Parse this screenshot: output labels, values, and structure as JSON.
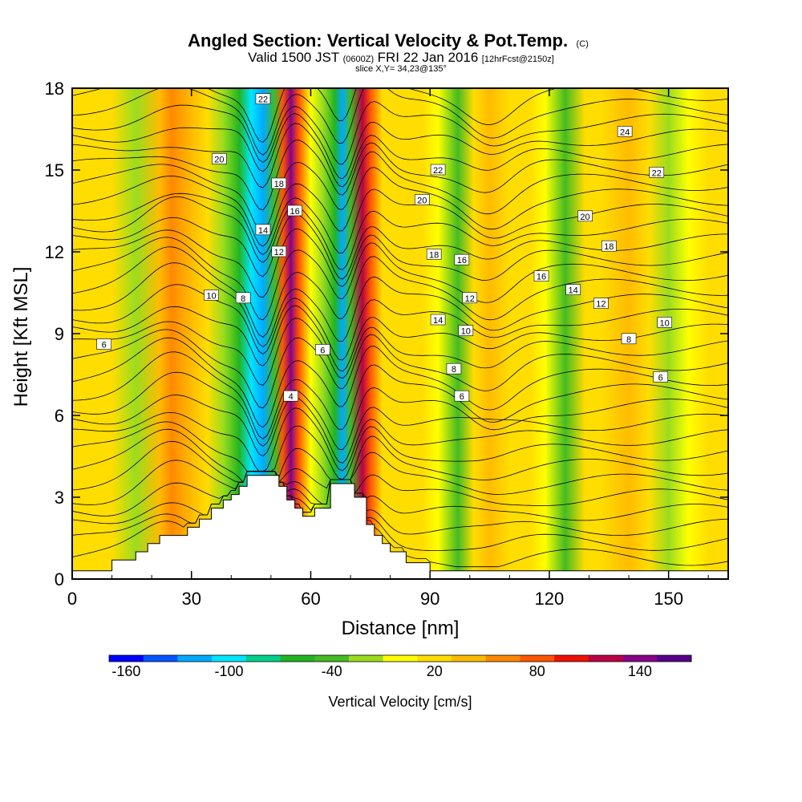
{
  "chart_data": {
    "type": "heatmap",
    "title": "Angled Section: Vertical Velocity & Pot.Temp.",
    "title_suffix": "(C)",
    "subtitle": {
      "part1": "Valid 1500 JST",
      "part2": "(0600Z)",
      "part3": "FRI 22 Jan 2016",
      "part4": "[12hrFcst@2150z]"
    },
    "slice_text": "slice X,Y= 34,23@135°",
    "xlabel": "Distance [nm]",
    "ylabel": "Height [Kft MSL]",
    "xlim": [
      0,
      165
    ],
    "ylim": [
      0,
      18
    ],
    "xticks": [
      "0",
      "30",
      "60",
      "90",
      "120",
      "150"
    ],
    "yticks": [
      "0",
      "3",
      "6",
      "9",
      "12",
      "15",
      "18"
    ],
    "colorbar": {
      "label": "Vertical Velocity [cm/s]",
      "tick_labels": [
        "-160",
        "-100",
        "-40",
        "20",
        "80",
        "140"
      ],
      "bins": [
        {
          "color": "#0000ff"
        },
        {
          "color": "#0055ff"
        },
        {
          "color": "#00aaff"
        },
        {
          "color": "#00e5ff"
        },
        {
          "color": "#00d08a"
        },
        {
          "color": "#22b422"
        },
        {
          "color": "#44bb22"
        },
        {
          "color": "#9bdc1e"
        },
        {
          "color": "#ffff00"
        },
        {
          "color": "#ffdd00"
        },
        {
          "color": "#ffbb00"
        },
        {
          "color": "#ff8800"
        },
        {
          "color": "#ff5500"
        },
        {
          "color": "#ee1100"
        },
        {
          "color": "#bb0044"
        },
        {
          "color": "#880088"
        },
        {
          "color": "#550088"
        }
      ]
    },
    "terrain_profile": [
      [
        0,
        0.3
      ],
      [
        10,
        0.3
      ],
      [
        10,
        0.7
      ],
      [
        16,
        0.7
      ],
      [
        16,
        1.0
      ],
      [
        19,
        1.0
      ],
      [
        19,
        1.3
      ],
      [
        22,
        1.3
      ],
      [
        22,
        1.6
      ],
      [
        29,
        1.6
      ],
      [
        29,
        1.9
      ],
      [
        32,
        1.9
      ],
      [
        32,
        2.2
      ],
      [
        35,
        2.2
      ],
      [
        35,
        2.6
      ],
      [
        38,
        2.6
      ],
      [
        38,
        2.9
      ],
      [
        40,
        2.9
      ],
      [
        40,
        3.1
      ],
      [
        42,
        3.1
      ],
      [
        42,
        3.4
      ],
      [
        44,
        3.4
      ],
      [
        44,
        3.8
      ],
      [
        52,
        3.8
      ],
      [
        52,
        3.4
      ],
      [
        54,
        3.4
      ],
      [
        54,
        2.9
      ],
      [
        56,
        2.9
      ],
      [
        56,
        2.6
      ],
      [
        58,
        2.6
      ],
      [
        58,
        2.3
      ],
      [
        61,
        2.3
      ],
      [
        61,
        2.6
      ],
      [
        65,
        2.6
      ],
      [
        65,
        3.5
      ],
      [
        71,
        3.5
      ],
      [
        71,
        3.0
      ],
      [
        74,
        3.0
      ],
      [
        74,
        2.0
      ],
      [
        76,
        2.0
      ],
      [
        76,
        1.6
      ],
      [
        78,
        1.6
      ],
      [
        78,
        1.3
      ],
      [
        80,
        1.3
      ],
      [
        80,
        1.0
      ],
      [
        84,
        1.0
      ],
      [
        84,
        0.6
      ],
      [
        90,
        0.6
      ],
      [
        90,
        0.3
      ],
      [
        165,
        0.3
      ]
    ],
    "vertical_velocity_columns": [
      {
        "x": 4,
        "value": 10
      },
      {
        "x": 10,
        "value": 0
      },
      {
        "x": 16,
        "value": -25
      },
      {
        "x": 22,
        "value": 25
      },
      {
        "x": 25,
        "value": 55
      },
      {
        "x": 30,
        "value": 35
      },
      {
        "x": 34,
        "value": 5
      },
      {
        "x": 38,
        "value": -30
      },
      {
        "x": 42,
        "value": -70
      },
      {
        "x": 45,
        "value": -110
      },
      {
        "x": 48,
        "value": -140
      },
      {
        "x": 51,
        "value": -50
      },
      {
        "x": 53,
        "value": 70
      },
      {
        "x": 55,
        "value": 120
      },
      {
        "x": 57,
        "value": 60
      },
      {
        "x": 60,
        "value": -15
      },
      {
        "x": 63,
        "value": -35
      },
      {
        "x": 66,
        "value": -80
      },
      {
        "x": 68,
        "value": -135
      },
      {
        "x": 70,
        "value": -60
      },
      {
        "x": 73,
        "value": 100
      },
      {
        "x": 75,
        "value": 70
      },
      {
        "x": 78,
        "value": 15
      },
      {
        "x": 82,
        "value": 10
      },
      {
        "x": 88,
        "value": 0
      },
      {
        "x": 92,
        "value": -20
      },
      {
        "x": 97,
        "value": -45
      },
      {
        "x": 101,
        "value": 5
      },
      {
        "x": 105,
        "value": 35
      },
      {
        "x": 110,
        "value": 15
      },
      {
        "x": 115,
        "value": 5
      },
      {
        "x": 119,
        "value": -20
      },
      {
        "x": 124,
        "value": -45
      },
      {
        "x": 129,
        "value": 0
      },
      {
        "x": 133,
        "value": 15
      },
      {
        "x": 140,
        "value": 20
      },
      {
        "x": 145,
        "value": 5
      },
      {
        "x": 150,
        "value": -35
      },
      {
        "x": 155,
        "value": -15
      },
      {
        "x": 160,
        "value": 10
      },
      {
        "x": 165,
        "value": 0
      }
    ],
    "potential_temperature_isolines": [
      2,
      4,
      6,
      8,
      10,
      12,
      14,
      16,
      18,
      20,
      22,
      24
    ],
    "contour_labels": [
      {
        "text": "22",
        "x": 48,
        "y": 17.6
      },
      {
        "text": "20",
        "x": 37,
        "y": 15.4
      },
      {
        "text": "18",
        "x": 52,
        "y": 14.5
      },
      {
        "text": "16",
        "x": 56,
        "y": 13.5
      },
      {
        "text": "14",
        "x": 48,
        "y": 12.8
      },
      {
        "text": "12",
        "x": 52,
        "y": 12.0
      },
      {
        "text": "10",
        "x": 35,
        "y": 10.4
      },
      {
        "text": "8",
        "x": 43,
        "y": 10.3
      },
      {
        "text": "6",
        "x": 8,
        "y": 8.6
      },
      {
        "text": "4",
        "x": 55,
        "y": 6.7
      },
      {
        "text": "6",
        "x": 63,
        "y": 8.4
      },
      {
        "text": "22",
        "x": 92,
        "y": 15.0
      },
      {
        "text": "20",
        "x": 88,
        "y": 13.9
      },
      {
        "text": "18",
        "x": 91,
        "y": 11.9
      },
      {
        "text": "16",
        "x": 98,
        "y": 11.7
      },
      {
        "text": "14",
        "x": 92,
        "y": 9.5
      },
      {
        "text": "12",
        "x": 100,
        "y": 10.3
      },
      {
        "text": "10",
        "x": 99,
        "y": 9.1
      },
      {
        "text": "8",
        "x": 96,
        "y": 7.7
      },
      {
        "text": "6",
        "x": 98,
        "y": 6.7
      },
      {
        "text": "24",
        "x": 139,
        "y": 16.4
      },
      {
        "text": "22",
        "x": 147,
        "y": 14.9
      },
      {
        "text": "20",
        "x": 129,
        "y": 13.3
      },
      {
        "text": "18",
        "x": 135,
        "y": 12.2
      },
      {
        "text": "16",
        "x": 118,
        "y": 11.1
      },
      {
        "text": "14",
        "x": 126,
        "y": 10.6
      },
      {
        "text": "12",
        "x": 133,
        "y": 10.1
      },
      {
        "text": "10",
        "x": 149,
        "y": 9.4
      },
      {
        "text": "8",
        "x": 140,
        "y": 8.8
      },
      {
        "text": "6",
        "x": 148,
        "y": 7.4
      }
    ]
  }
}
